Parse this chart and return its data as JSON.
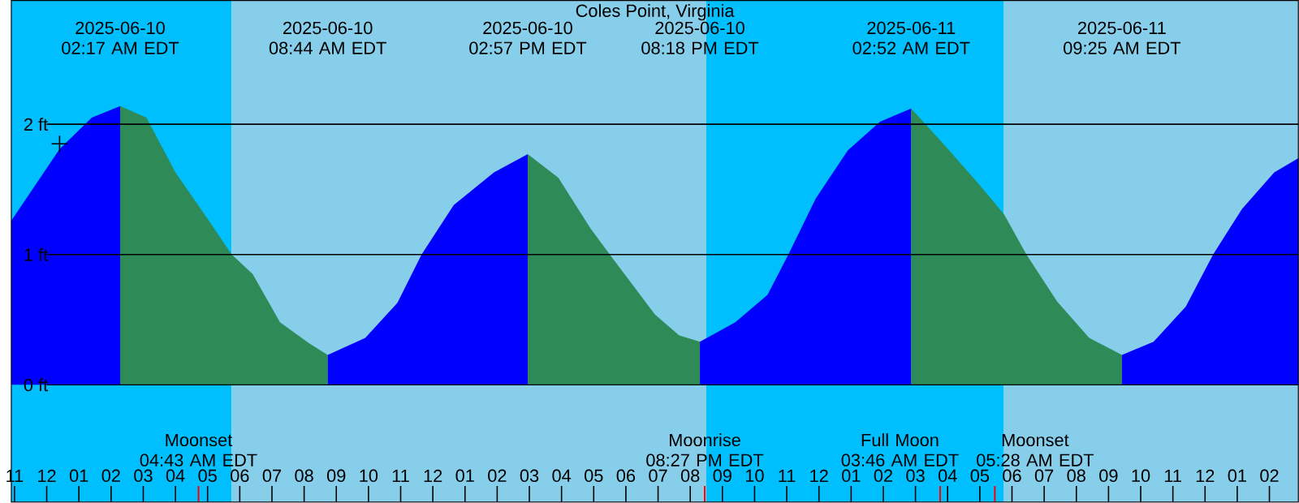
{
  "chart_data": {
    "type": "area",
    "title": "Coles Point, Virginia",
    "xlim": [
      "2025-06-09T22:54",
      "2025-06-11T14:54"
    ],
    "ylim": [
      -0.9,
      2.95
    ],
    "xticks": [
      {
        "value": "2025-06-09T23:00",
        "label": "11"
      },
      {
        "value": "2025-06-10T00:00",
        "label": "12"
      },
      {
        "value": "2025-06-10T01:00",
        "label": "01"
      },
      {
        "value": "2025-06-10T02:00",
        "label": "02"
      },
      {
        "value": "2025-06-10T03:00",
        "label": "03"
      },
      {
        "value": "2025-06-10T04:00",
        "label": "04"
      },
      {
        "value": "2025-06-10T05:00",
        "label": "05"
      },
      {
        "value": "2025-06-10T06:00",
        "label": "06"
      },
      {
        "value": "2025-06-10T07:00",
        "label": "07"
      },
      {
        "value": "2025-06-10T08:00",
        "label": "08"
      },
      {
        "value": "2025-06-10T09:00",
        "label": "09"
      },
      {
        "value": "2025-06-10T10:00",
        "label": "10"
      },
      {
        "value": "2025-06-10T11:00",
        "label": "11"
      },
      {
        "value": "2025-06-10T12:00",
        "label": "12"
      },
      {
        "value": "2025-06-10T13:00",
        "label": "01"
      },
      {
        "value": "2025-06-10T14:00",
        "label": "02"
      },
      {
        "value": "2025-06-10T15:00",
        "label": "03"
      },
      {
        "value": "2025-06-10T16:00",
        "label": "04"
      },
      {
        "value": "2025-06-10T17:00",
        "label": "05"
      },
      {
        "value": "2025-06-10T18:00",
        "label": "06"
      },
      {
        "value": "2025-06-10T19:00",
        "label": "07"
      },
      {
        "value": "2025-06-10T20:00",
        "label": "08"
      },
      {
        "value": "2025-06-10T21:00",
        "label": "09"
      },
      {
        "value": "2025-06-10T22:00",
        "label": "10"
      },
      {
        "value": "2025-06-10T23:00",
        "label": "11"
      },
      {
        "value": "2025-06-11T00:00",
        "label": "12"
      },
      {
        "value": "2025-06-11T01:00",
        "label": "01"
      },
      {
        "value": "2025-06-11T02:00",
        "label": "02"
      },
      {
        "value": "2025-06-11T03:00",
        "label": "03"
      },
      {
        "value": "2025-06-11T04:00",
        "label": "04"
      },
      {
        "value": "2025-06-11T05:00",
        "label": "05"
      },
      {
        "value": "2025-06-11T06:00",
        "label": "06"
      },
      {
        "value": "2025-06-11T07:00",
        "label": "07"
      },
      {
        "value": "2025-06-11T08:00",
        "label": "08"
      },
      {
        "value": "2025-06-11T09:00",
        "label": "09"
      },
      {
        "value": "2025-06-11T10:00",
        "label": "10"
      },
      {
        "value": "2025-06-11T11:00",
        "label": "11"
      },
      {
        "value": "2025-06-11T12:00",
        "label": "12"
      },
      {
        "value": "2025-06-11T13:00",
        "label": "01"
      },
      {
        "value": "2025-06-11T14:00",
        "label": "02"
      }
    ],
    "yticks": [
      {
        "value": 0,
        "label": "0 ft"
      },
      {
        "value": 1,
        "label": "1 ft"
      },
      {
        "value": 2,
        "label": "2 ft"
      }
    ],
    "grid": "y",
    "bands": [
      {
        "axis": "x",
        "from": "2025-06-09T22:54",
        "to": "2025-06-10T05:45",
        "color": "#00bfff"
      },
      {
        "axis": "x",
        "from": "2025-06-10T05:45",
        "to": "2025-06-10T20:30",
        "color": "#87ceeb"
      },
      {
        "axis": "x",
        "from": "2025-06-10T20:30",
        "to": "2025-06-11T05:45",
        "color": "#00bfff"
      },
      {
        "axis": "x",
        "from": "2025-06-11T05:45",
        "to": "2025-06-11T14:54",
        "color": "#87ceeb"
      }
    ],
    "series": [
      {
        "color": "#0000ff",
        "x": [
          "2025-06-09T22:54",
          "2025-06-10T00:24",
          "2025-06-10T01:24",
          "2025-06-10T02:17"
        ],
        "values": [
          1.26,
          1.81,
          2.05,
          2.14
        ]
      },
      {
        "color": "#2e8b57",
        "x": [
          "2025-06-10T02:17",
          "2025-06-10T03:06",
          "2025-06-10T04:00",
          "2025-06-10T04:54",
          "2025-06-10T05:45",
          "2025-06-10T06:24",
          "2025-06-10T07:15",
          "2025-06-10T08:09",
          "2025-06-10T08:44"
        ],
        "values": [
          2.14,
          2.05,
          1.63,
          1.31,
          1.0,
          0.85,
          0.48,
          0.32,
          0.23
        ]
      },
      {
        "color": "#0000ff",
        "x": [
          "2025-06-10T08:44",
          "2025-06-10T09:54",
          "2025-06-10T10:54",
          "2025-06-10T11:39",
          "2025-06-10T12:39",
          "2025-06-10T13:54",
          "2025-06-10T14:57"
        ],
        "values": [
          0.23,
          0.36,
          0.63,
          1.0,
          1.38,
          1.63,
          1.77
        ]
      },
      {
        "color": "#2e8b57",
        "x": [
          "2025-06-10T14:57",
          "2025-06-10T15:54",
          "2025-06-10T16:54",
          "2025-06-10T17:30",
          "2025-06-10T18:54",
          "2025-06-10T19:39",
          "2025-06-10T20:18"
        ],
        "values": [
          1.77,
          1.59,
          1.2,
          1.0,
          0.54,
          0.38,
          0.33
        ]
      },
      {
        "color": "#0000ff",
        "x": [
          "2025-06-10T20:18",
          "2025-06-10T21:24",
          "2025-06-10T22:24",
          "2025-06-10T23:03",
          "2025-06-10T23:54",
          "2025-06-11T00:54",
          "2025-06-11T01:54",
          "2025-06-11T02:52"
        ],
        "values": [
          0.33,
          0.48,
          0.69,
          1.0,
          1.43,
          1.8,
          2.02,
          2.12
        ]
      },
      {
        "color": "#2e8b57",
        "x": [
          "2025-06-11T02:52",
          "2025-06-11T03:54",
          "2025-06-11T04:54",
          "2025-06-11T05:45",
          "2025-06-11T06:27",
          "2025-06-11T07:24",
          "2025-06-11T08:24",
          "2025-06-11T09:25"
        ],
        "values": [
          2.12,
          1.84,
          1.56,
          1.31,
          1.0,
          0.64,
          0.36,
          0.23
        ]
      },
      {
        "color": "#0000ff",
        "x": [
          "2025-06-11T09:25",
          "2025-06-11T10:24",
          "2025-06-11T11:24",
          "2025-06-11T12:15",
          "2025-06-11T13:09",
          "2025-06-11T14:09",
          "2025-06-11T14:54"
        ],
        "values": [
          0.23,
          0.33,
          0.6,
          1.0,
          1.35,
          1.63,
          1.74
        ]
      },
      {
        "type": "scatter",
        "marker": "cross",
        "color": "#000000",
        "x": [
          "2025-06-10T00:24"
        ],
        "values": [
          1.85
        ]
      }
    ],
    "x2lim": [
      "2025-06-09T22:54",
      "2025-06-11T14:54"
    ],
    "x2ticks": [
      {
        "value": "2025-06-10T02:17",
        "label": "2025-06-10\n02:17 AM EDT"
      },
      {
        "value": "2025-06-10T08:44",
        "label": "2025-06-10\n08:44 AM EDT"
      },
      {
        "value": "2025-06-10T14:57",
        "label": "2025-06-10\n02:57 PM EDT"
      },
      {
        "value": "2025-06-10T20:18",
        "label": "2025-06-10\n08:18 PM EDT"
      },
      {
        "value": "2025-06-11T02:52",
        "label": "2025-06-11\n02:52 AM EDT"
      },
      {
        "value": "2025-06-11T09:25",
        "label": "2025-06-11\n09:25 AM EDT"
      }
    ],
    "ref_lines": [
      {
        "axis": "x",
        "value": "2025-06-10T04:43",
        "label": "Moonset\n04:43 AM EDT",
        "color": "#ff0000"
      },
      {
        "axis": "x",
        "value": "2025-06-10T20:27",
        "label": "Moonrise\n08:27 PM EDT",
        "color": "#ff0000"
      },
      {
        "axis": "x",
        "value": "2025-06-11T03:46",
        "label": "Full Moon\n03:46 AM EDT",
        "color": "#ff0000"
      },
      {
        "axis": "x",
        "value": "2025-06-11T05:28",
        "label": "Moonset\n05:28 AM EDT",
        "color": "#ff0000"
      }
    ]
  }
}
